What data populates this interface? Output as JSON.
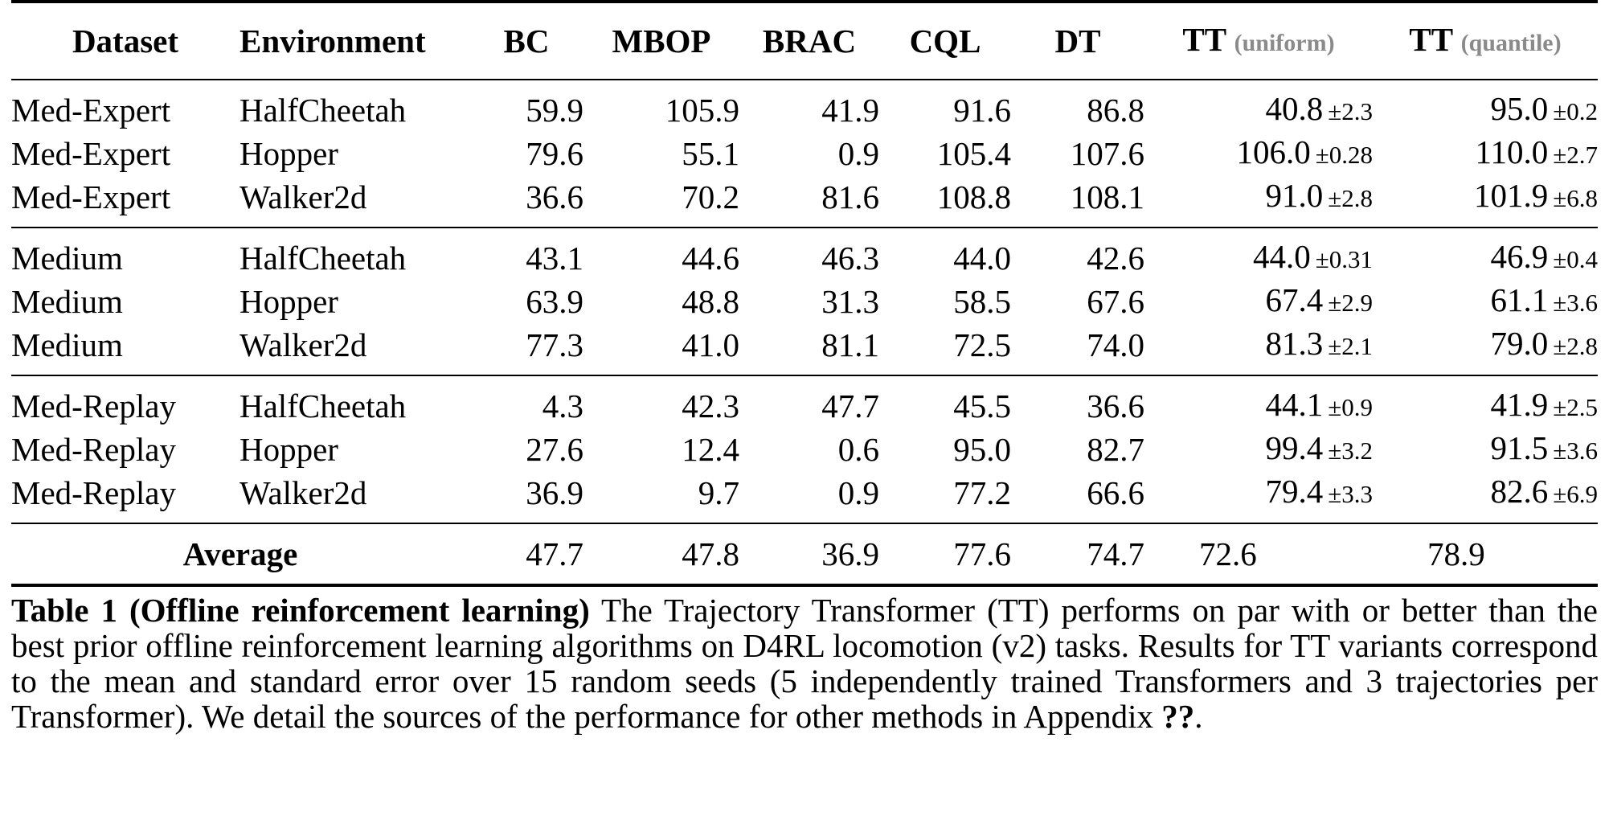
{
  "table": {
    "headers": {
      "dataset": "Dataset",
      "environment": "Environment",
      "bc": "BC",
      "mbop": "MBOP",
      "brac": "BRAC",
      "cql": "CQL",
      "dt": "DT",
      "tt_uniform": "TT",
      "tt_uniform_variant": "(uniform)",
      "tt_quantile": "TT",
      "tt_quantile_variant": "(quantile)"
    },
    "rows": [
      {
        "dataset": "Med-Expert",
        "environment": "HalfCheetah",
        "bc": "59.9",
        "mbop": "105.9",
        "brac": "41.9",
        "cql": "91.6",
        "dt": "86.8",
        "ttu": "40.8",
        "ttu_se": "±2.3",
        "ttq": "95.0",
        "ttq_se": "±0.2"
      },
      {
        "dataset": "Med-Expert",
        "environment": "Hopper",
        "bc": "79.6",
        "mbop": "55.1",
        "brac": "0.9",
        "cql": "105.4",
        "dt": "107.6",
        "ttu": "106.0",
        "ttu_se": "±0.28",
        "ttq": "110.0",
        "ttq_se": "±2.7"
      },
      {
        "dataset": "Med-Expert",
        "environment": "Walker2d",
        "bc": "36.6",
        "mbop": "70.2",
        "brac": "81.6",
        "cql": "108.8",
        "dt": "108.1",
        "ttu": "91.0",
        "ttu_se": "±2.8",
        "ttq": "101.9",
        "ttq_se": "±6.8"
      },
      {
        "dataset": "Medium",
        "environment": "HalfCheetah",
        "bc": "43.1",
        "mbop": "44.6",
        "brac": "46.3",
        "cql": "44.0",
        "dt": "42.6",
        "ttu": "44.0",
        "ttu_se": "±0.31",
        "ttq": "46.9",
        "ttq_se": "±0.4"
      },
      {
        "dataset": "Medium",
        "environment": "Hopper",
        "bc": "63.9",
        "mbop": "48.8",
        "brac": "31.3",
        "cql": "58.5",
        "dt": "67.6",
        "ttu": "67.4",
        "ttu_se": "±2.9",
        "ttq": "61.1",
        "ttq_se": "±3.6"
      },
      {
        "dataset": "Medium",
        "environment": "Walker2d",
        "bc": "77.3",
        "mbop": "41.0",
        "brac": "81.1",
        "cql": "72.5",
        "dt": "74.0",
        "ttu": "81.3",
        "ttu_se": "±2.1",
        "ttq": "79.0",
        "ttq_se": "±2.8"
      },
      {
        "dataset": "Med-Replay",
        "environment": "HalfCheetah",
        "bc": "4.3",
        "mbop": "42.3",
        "brac": "47.7",
        "cql": "45.5",
        "dt": "36.6",
        "ttu": "44.1",
        "ttu_se": "±0.9",
        "ttq": "41.9",
        "ttq_se": "±2.5"
      },
      {
        "dataset": "Med-Replay",
        "environment": "Hopper",
        "bc": "27.6",
        "mbop": "12.4",
        "brac": "0.6",
        "cql": "95.0",
        "dt": "82.7",
        "ttu": "99.4",
        "ttu_se": "±3.2",
        "ttq": "91.5",
        "ttq_se": "±3.6"
      },
      {
        "dataset": "Med-Replay",
        "environment": "Walker2d",
        "bc": "36.9",
        "mbop": "9.7",
        "brac": "0.9",
        "cql": "77.2",
        "dt": "66.6",
        "ttu": "79.4",
        "ttu_se": "±3.3",
        "ttq": "82.6",
        "ttq_se": "±6.9"
      }
    ],
    "average": {
      "label": "Average",
      "bc": "47.7",
      "mbop": "47.8",
      "brac": "36.9",
      "cql": "77.6",
      "dt": "74.7",
      "ttu": "72.6",
      "ttq": "78.9"
    }
  },
  "caption": {
    "label": "Table 1 (Offline reinforcement learning)",
    "text": " The Trajectory Transformer (TT) performs on par with or better than the best prior offline reinforcement learning algorithms on D4RL locomotion (v2) tasks. Results for TT variants correspond to the mean and standard error over 15 random seeds (5 independently trained Transformers and 3 trajectories per Transformer). We detail the sources of the performance for other methods in Appendix ",
    "appendix_ref": "??",
    "end": "."
  }
}
